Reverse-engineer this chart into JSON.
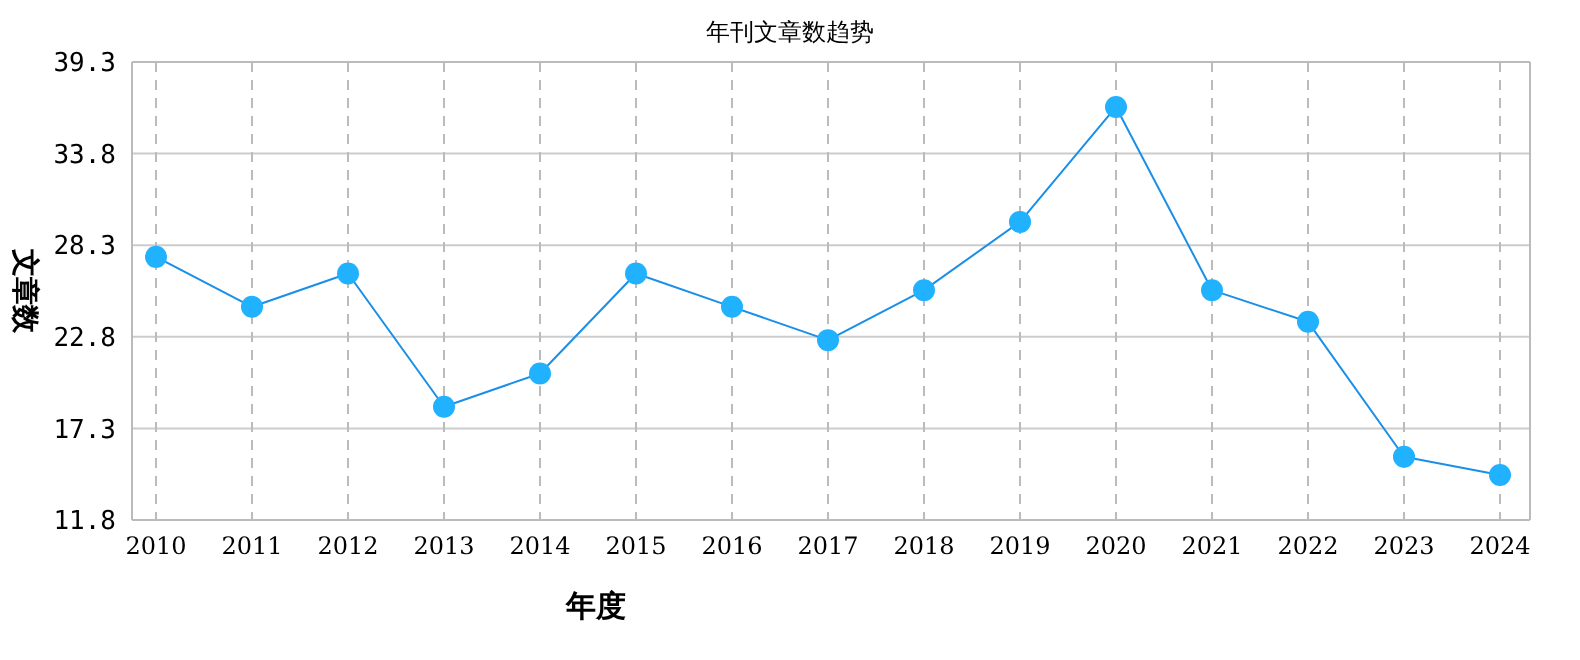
{
  "chart_data": {
    "type": "line",
    "title": "年刊文章数趋势",
    "xlabel": "年度",
    "ylabel": "文章数",
    "categories": [
      "2010",
      "2011",
      "2012",
      "2013",
      "2014",
      "2015",
      "2016",
      "2017",
      "2018",
      "2019",
      "2020",
      "2021",
      "2022",
      "2023",
      "2024"
    ],
    "series": [
      {
        "color": "#1a8fe8",
        "values": [
          27.6,
          24.6,
          26.6,
          18.6,
          20.6,
          26.6,
          24.6,
          22.6,
          25.6,
          29.7,
          36.6,
          25.6,
          23.7,
          15.6,
          14.5
        ]
      }
    ],
    "ylim": [
      11.8,
      39.3
    ],
    "yticks": [
      11.8,
      17.3,
      22.8,
      28.3,
      33.8,
      39.3
    ],
    "grid": true,
    "marker": "circle",
    "line_style": "solid"
  }
}
